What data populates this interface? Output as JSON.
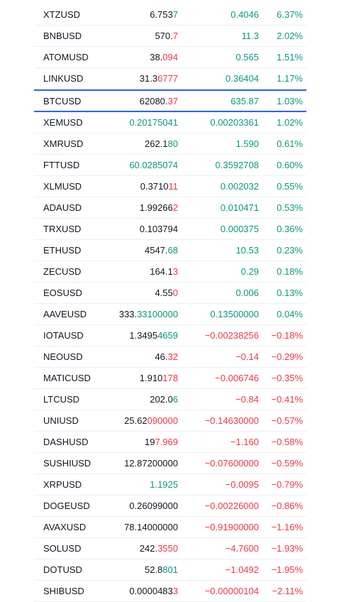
{
  "colors": {
    "up": "#089981",
    "down": "#f23645",
    "text": "#131722",
    "highlight": "#2962ff"
  },
  "rows": [
    {
      "symbol": "XTZUSD",
      "last_a": "6.753",
      "last_b": "7",
      "last_dir": "up",
      "change": "0.4046",
      "change_pct": "6.37%",
      "dir": "up"
    },
    {
      "symbol": "BNBUSD",
      "last_a": "570.",
      "last_b": "7",
      "last_dir": "down",
      "change": "11.3",
      "change_pct": "2.02%",
      "dir": "up"
    },
    {
      "symbol": "ATOMUSD",
      "last_a": "38.",
      "last_b": "094",
      "last_dir": "down",
      "change": "0.565",
      "change_pct": "1.51%",
      "dir": "up"
    },
    {
      "symbol": "LINKUSD",
      "last_a": "31.3",
      "last_b": "6777",
      "last_dir": "down",
      "change": "0.36404",
      "change_pct": "1.17%",
      "dir": "up"
    },
    {
      "symbol": "BTCUSD",
      "last_a": "62080.",
      "last_b": "37",
      "last_dir": "down",
      "change": "635.87",
      "change_pct": "1.03%",
      "dir": "up",
      "highlight": true
    },
    {
      "symbol": "XEMUSD",
      "last_a": "",
      "last_b": "0.20175041",
      "last_dir": "up",
      "change": "0.00203361",
      "change_pct": "1.02%",
      "dir": "up"
    },
    {
      "symbol": "XMRUSD",
      "last_a": "262.1",
      "last_b": "80",
      "last_dir": "up",
      "change": "1.590",
      "change_pct": "0.61%",
      "dir": "up"
    },
    {
      "symbol": "FTTUSD",
      "last_a": "",
      "last_b": "60.0285074",
      "last_dir": "up",
      "change": "0.3592708",
      "change_pct": "0.60%",
      "dir": "up"
    },
    {
      "symbol": "XLMUSD",
      "last_a": "0.3710",
      "last_b": "11",
      "last_dir": "down",
      "change": "0.002032",
      "change_pct": "0.55%",
      "dir": "up"
    },
    {
      "symbol": "ADAUSD",
      "last_a": "1.99266",
      "last_b": "2",
      "last_dir": "down",
      "change": "0.010471",
      "change_pct": "0.53%",
      "dir": "up"
    },
    {
      "symbol": "TRXUSD",
      "last_a": "0.103794",
      "last_b": "",
      "last_dir": "up",
      "change": "0.000375",
      "change_pct": "0.36%",
      "dir": "up"
    },
    {
      "symbol": "ETHUSD",
      "last_a": "4547.",
      "last_b": "68",
      "last_dir": "up",
      "change": "10.53",
      "change_pct": "0.23%",
      "dir": "up"
    },
    {
      "symbol": "ZECUSD",
      "last_a": "164.1",
      "last_b": "3",
      "last_dir": "down",
      "change": "0.29",
      "change_pct": "0.18%",
      "dir": "up"
    },
    {
      "symbol": "EOSUSD",
      "last_a": "4.55",
      "last_b": "0",
      "last_dir": "down",
      "change": "0.006",
      "change_pct": "0.13%",
      "dir": "up"
    },
    {
      "symbol": "AAVEUSD",
      "last_a": "333.",
      "last_b": "33100000",
      "last_dir": "up",
      "change": "0.13500000",
      "change_pct": "0.04%",
      "dir": "up"
    },
    {
      "symbol": "IOTAUSD",
      "last_a": "1.3495",
      "last_b": "4659",
      "last_dir": "up",
      "change": "−0.00238256",
      "change_pct": "−0.18%",
      "dir": "down"
    },
    {
      "symbol": "NEOUSD",
      "last_a": "46.",
      "last_b": "32",
      "last_dir": "down",
      "change": "−0.14",
      "change_pct": "−0.29%",
      "dir": "down"
    },
    {
      "symbol": "MATICUSD",
      "last_a": "1.910",
      "last_b": "178",
      "last_dir": "down",
      "change": "−0.006746",
      "change_pct": "−0.35%",
      "dir": "down"
    },
    {
      "symbol": "LTCUSD",
      "last_a": "202.0",
      "last_b": "6",
      "last_dir": "up",
      "change": "−0.84",
      "change_pct": "−0.41%",
      "dir": "down"
    },
    {
      "symbol": "UNIUSD",
      "last_a": "25.62",
      "last_b": "090000",
      "last_dir": "down",
      "change": "−0.14630000",
      "change_pct": "−0.57%",
      "dir": "down"
    },
    {
      "symbol": "DASHUSD",
      "last_a": "19",
      "last_b": "7.969",
      "last_dir": "down",
      "change": "−1.160",
      "change_pct": "−0.58%",
      "dir": "down"
    },
    {
      "symbol": "SUSHIUSD",
      "last_a": "12.87200000",
      "last_b": "",
      "last_dir": "down",
      "change": "−0.07600000",
      "change_pct": "−0.59%",
      "dir": "down"
    },
    {
      "symbol": "XRPUSD",
      "last_a": "",
      "last_b": "1.1925",
      "last_dir": "up",
      "change": "−0.0095",
      "change_pct": "−0.79%",
      "dir": "down"
    },
    {
      "symbol": "DOGEUSD",
      "last_a": "0.26099000",
      "last_b": "",
      "last_dir": "down",
      "change": "−0.00226000",
      "change_pct": "−0.86%",
      "dir": "down"
    },
    {
      "symbol": "AVAXUSD",
      "last_a": "78.14000000",
      "last_b": "",
      "last_dir": "down",
      "change": "−0.91900000",
      "change_pct": "−1.16%",
      "dir": "down"
    },
    {
      "symbol": "SOLUSD",
      "last_a": "242.",
      "last_b": "3550",
      "last_dir": "down",
      "change": "−4.7600",
      "change_pct": "−1.93%",
      "dir": "down"
    },
    {
      "symbol": "DOTUSD",
      "last_a": "52.8",
      "last_b": "801",
      "last_dir": "up",
      "change": "−1.0492",
      "change_pct": "−1.95%",
      "dir": "down"
    },
    {
      "symbol": "SHIBUSD",
      "last_a": "0.0000483",
      "last_b": "3",
      "last_dir": "down",
      "change": "−0.00000104",
      "change_pct": "−2.11%",
      "dir": "down"
    }
  ]
}
